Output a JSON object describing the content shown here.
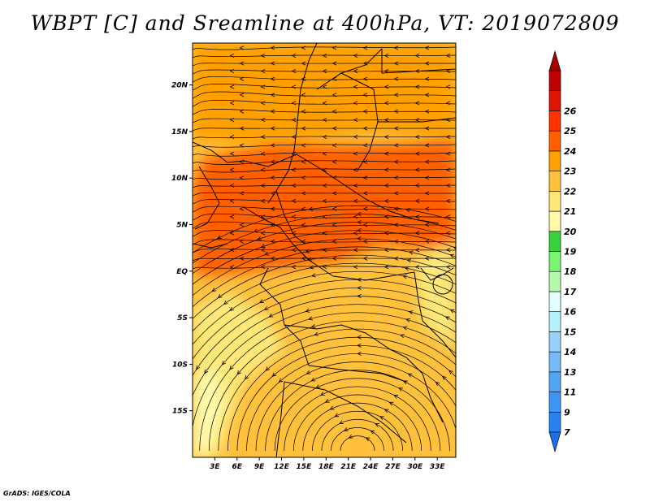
{
  "title": "WBPT [C] and Sreamline at 400hPa, VT: 2019072809",
  "credit": "GrADS: IGES/COLA",
  "map": {
    "lat_range": [
      -20,
      24.5
    ],
    "lon_range": [
      0,
      35.5
    ],
    "lat_ticks": [
      {
        "value": 20,
        "label": "20N"
      },
      {
        "value": 15,
        "label": "15N"
      },
      {
        "value": 10,
        "label": "10N"
      },
      {
        "value": 5,
        "label": "5N"
      },
      {
        "value": 0,
        "label": "EQ"
      },
      {
        "value": -5,
        "label": "5S"
      },
      {
        "value": -10,
        "label": "10S"
      },
      {
        "value": -15,
        "label": "15S"
      }
    ],
    "lon_ticks": [
      {
        "value": 3,
        "label": "3E"
      },
      {
        "value": 6,
        "label": "6E"
      },
      {
        "value": 9,
        "label": "9E"
      },
      {
        "value": 12,
        "label": "12E"
      },
      {
        "value": 15,
        "label": "15E"
      },
      {
        "value": 18,
        "label": "18E"
      },
      {
        "value": 21,
        "label": "21E"
      },
      {
        "value": 24,
        "label": "24E"
      },
      {
        "value": 27,
        "label": "27E"
      },
      {
        "value": 30,
        "label": "30E"
      },
      {
        "value": 33,
        "label": "33E"
      }
    ]
  },
  "colorbar": {
    "levels": [
      "7",
      "9",
      "11",
      "13",
      "14",
      "15",
      "16",
      "17",
      "18",
      "19",
      "20",
      "21",
      "22",
      "23",
      "24",
      "25",
      "26"
    ],
    "colors": [
      "#1e6ee8",
      "#2882f0",
      "#3c96f5",
      "#50a5f5",
      "#78b9fa",
      "#96d2fa",
      "#b4f0fa",
      "#e1ffff",
      "#b4faaa",
      "#78f573",
      "#37d23c",
      "#fffaaa",
      "#ffe878",
      "#ffc03c",
      "#ffa000",
      "#ff6000",
      "#ff3200",
      "#e11400",
      "#c00000",
      "#a50000"
    ]
  }
}
